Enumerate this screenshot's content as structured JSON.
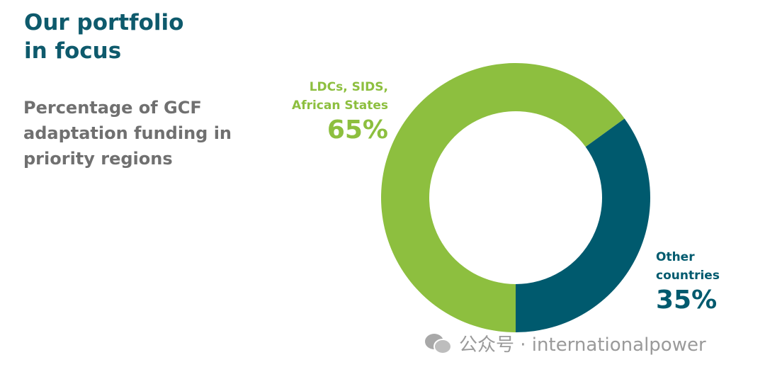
{
  "chart_data": {
    "type": "donut",
    "title": "Our portfolio in focus",
    "subtitle": "Percentage of GCF adaptation funding in priority regions",
    "categories": [
      "LDCs, SIDS, African States",
      "Other countries"
    ],
    "values": [
      65,
      35
    ],
    "value_labels": [
      "65%",
      "35%"
    ],
    "colors": [
      "#8dbf3f",
      "#005a6e"
    ]
  },
  "watermark": "公众号 · internationalpower"
}
